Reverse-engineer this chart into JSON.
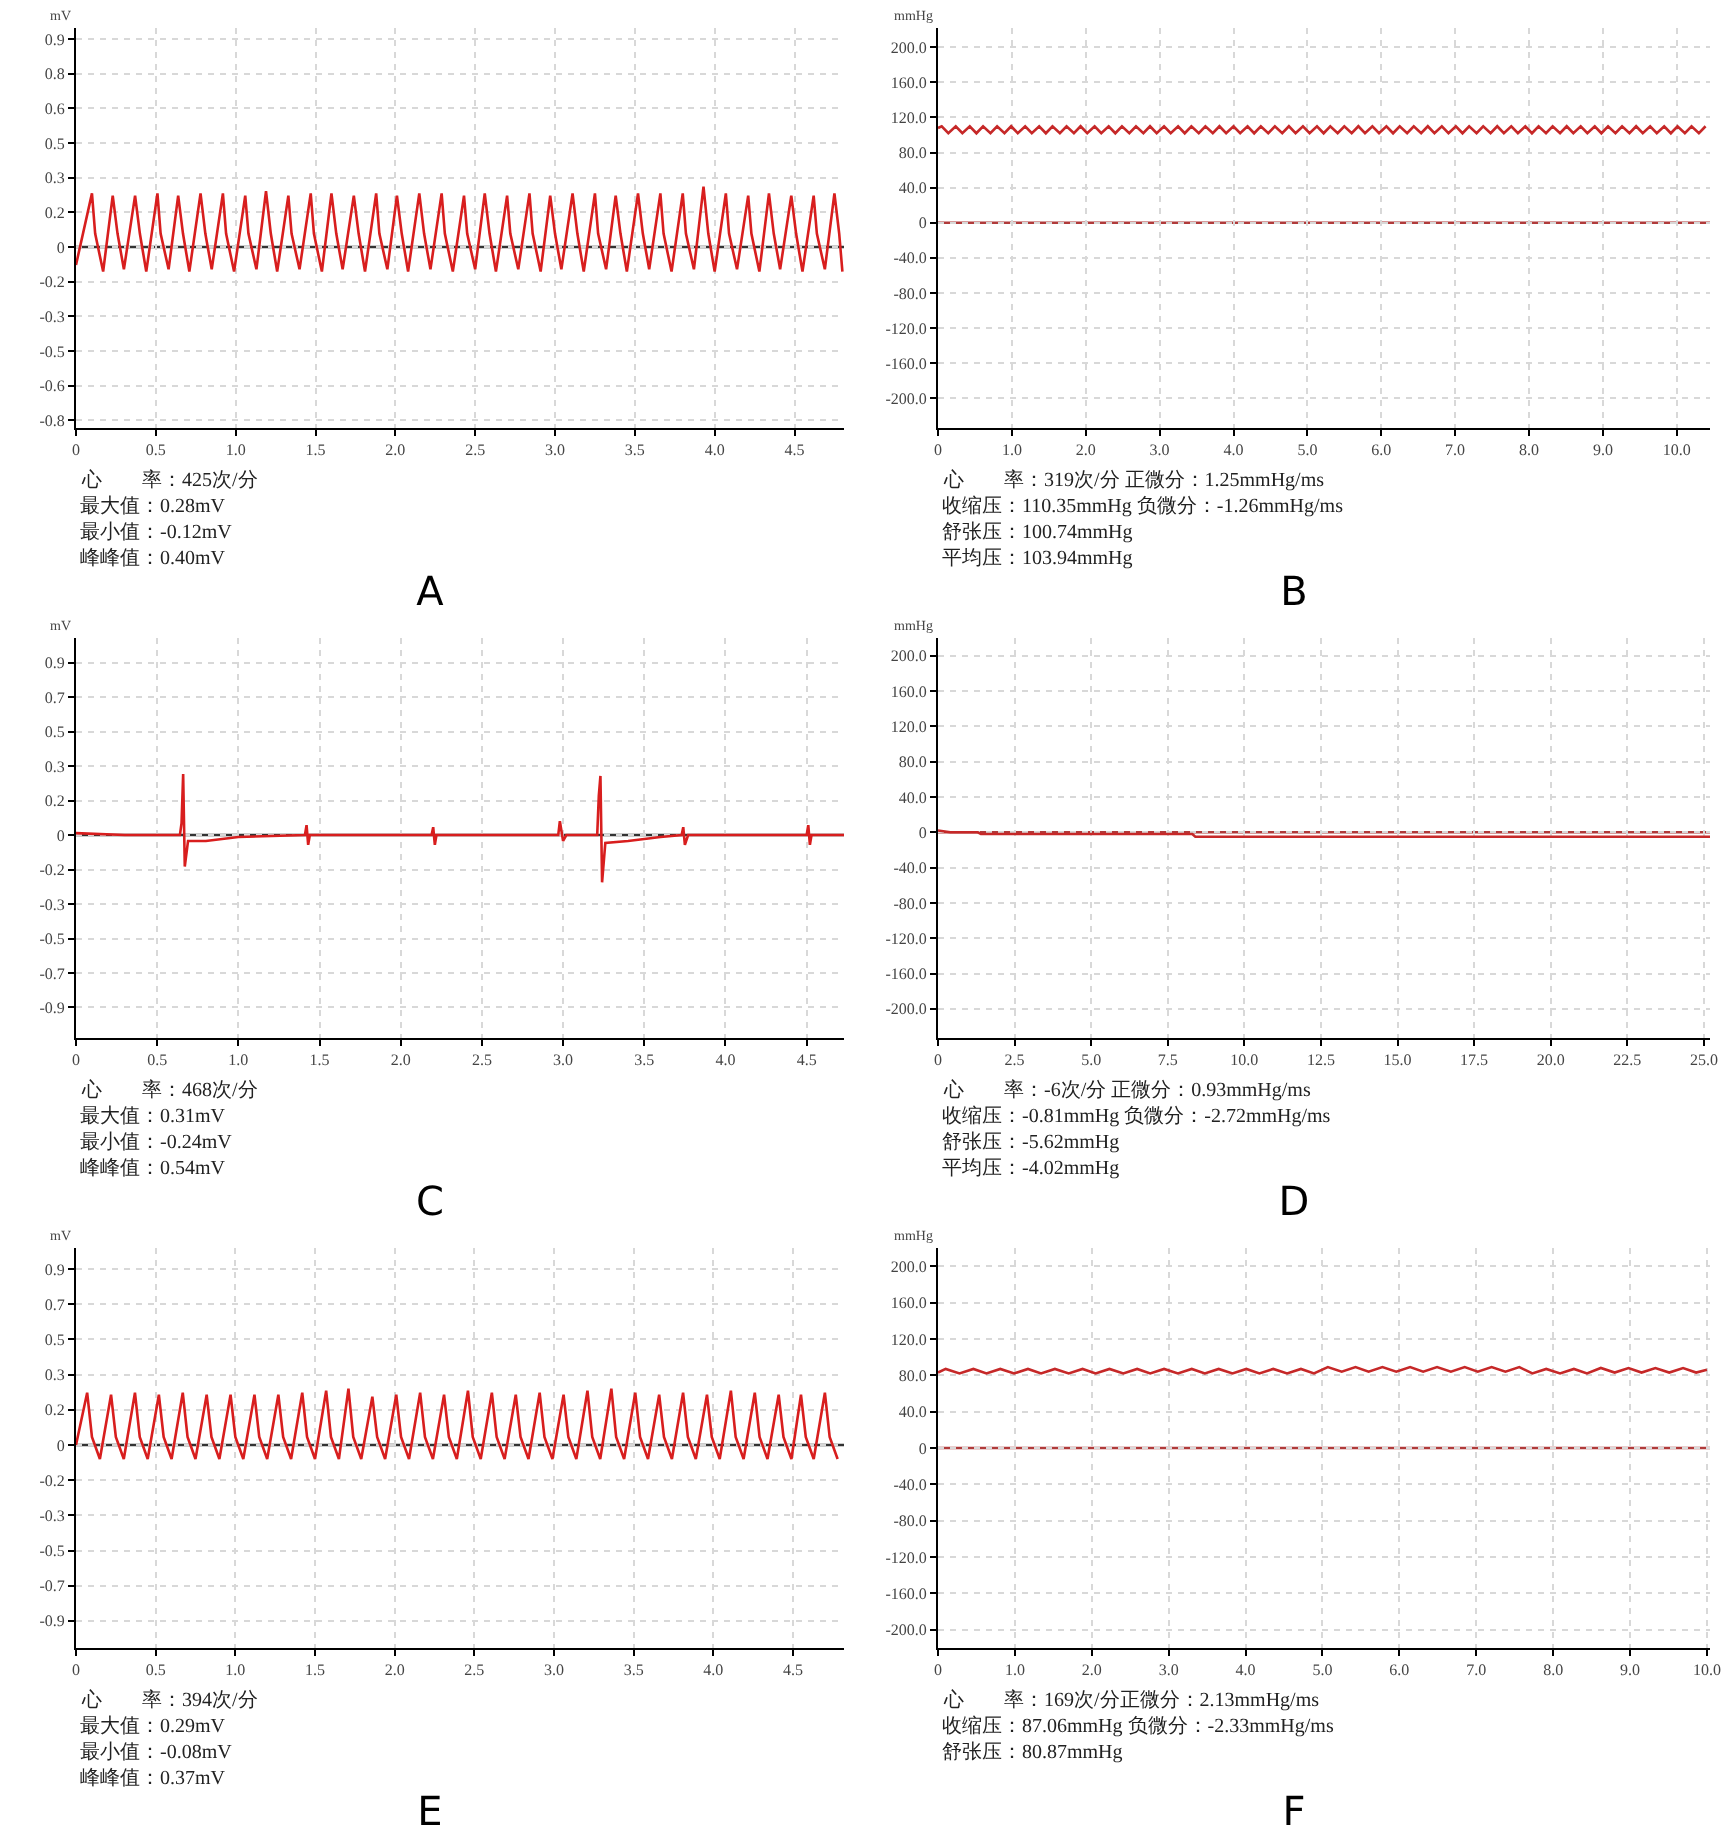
{
  "chart_data": [
    {
      "type": "line",
      "title": "A",
      "ylabel": "mV",
      "color": "#d81e1e",
      "grid": true,
      "annotations": [
        "心　　率：425次/分",
        "最大值：0.28mV",
        "最小值：-0.12mV",
        "峰峰值：0.40mV"
      ],
      "ref_lines": [
        {
          "axis": "y",
          "value": 0,
          "color": "#333333"
        }
      ],
      "xlim": [
        0,
        4.81
      ],
      "ylim": [
        -0.81,
        0.98
      ],
      "xticks": [
        0,
        0.5,
        {
          "value": 1,
          "label": "1.0"
        },
        1.5,
        {
          "value": 2,
          "label": "2.0"
        },
        2.5,
        {
          "value": 3,
          "label": "3.0"
        },
        3.5,
        {
          "value": 4,
          "label": "4.0"
        },
        4.5
      ],
      "yticks": [
        {
          "value": 0.93,
          "label": "0.9"
        },
        {
          "value": 0.775,
          "label": "0.8"
        },
        {
          "value": 0.62,
          "label": "0.6"
        },
        {
          "value": 0.465,
          "label": "0.5"
        },
        {
          "value": 0.31,
          "label": "0.3"
        },
        {
          "value": 0.155,
          "label": "0.2"
        },
        {
          "value": 0,
          "label": "0"
        },
        {
          "value": -0.155,
          "label": "-0.2"
        },
        {
          "value": -0.31,
          "label": "-0.3"
        },
        {
          "value": -0.465,
          "label": "-0.5"
        },
        {
          "value": -0.62,
          "label": "-0.6"
        },
        {
          "value": -0.775,
          "label": "-0.8"
        }
      ],
      "x": [
        0,
        0.1,
        0.12,
        0.17,
        0.23,
        0.26,
        0.3,
        0.37,
        0.4,
        0.44,
        0.51,
        0.53,
        0.58,
        0.64,
        0.67,
        0.71,
        0.78,
        0.81,
        0.85,
        0.92,
        0.94,
        0.99,
        1.06,
        1.08,
        1.13,
        1.19,
        1.22,
        1.26,
        1.33,
        1.35,
        1.4,
        1.47,
        1.49,
        1.54,
        1.6,
        1.63,
        1.67,
        1.74,
        1.77,
        1.81,
        1.88,
        1.9,
        1.95,
        2.01,
        2.04,
        2.08,
        2.15,
        2.18,
        2.22,
        2.29,
        2.31,
        2.36,
        2.43,
        2.45,
        2.5,
        2.56,
        2.59,
        2.63,
        2.7,
        2.72,
        2.77,
        2.84,
        2.86,
        2.91,
        2.97,
        3.0,
        3.04,
        3.11,
        3.14,
        3.18,
        3.25,
        3.27,
        3.32,
        3.38,
        3.41,
        3.45,
        3.52,
        3.55,
        3.59,
        3.66,
        3.68,
        3.73,
        3.8,
        3.82,
        3.87,
        3.93,
        3.96,
        4.0,
        4.07,
        4.09,
        4.14,
        4.21,
        4.23,
        4.28,
        4.34,
        4.37,
        4.41,
        4.48,
        4.51,
        4.55,
        4.62,
        4.64,
        4.69,
        4.75,
        4.78,
        4.8
      ],
      "values": [
        -0.08,
        0.24,
        0.06,
        -0.11,
        0.23,
        0.06,
        -0.1,
        0.23,
        0.06,
        -0.11,
        0.24,
        0.06,
        -0.1,
        0.23,
        0.06,
        -0.11,
        0.24,
        0.06,
        -0.1,
        0.24,
        0.06,
        -0.11,
        0.23,
        0.06,
        -0.1,
        0.25,
        0.06,
        -0.11,
        0.23,
        0.06,
        -0.1,
        0.24,
        0.06,
        -0.11,
        0.24,
        0.06,
        -0.1,
        0.23,
        0.06,
        -0.11,
        0.24,
        0.06,
        -0.1,
        0.23,
        0.06,
        -0.11,
        0.24,
        0.06,
        -0.1,
        0.24,
        0.06,
        -0.11,
        0.23,
        0.06,
        -0.1,
        0.24,
        0.06,
        -0.11,
        0.23,
        0.06,
        -0.1,
        0.24,
        0.06,
        -0.11,
        0.23,
        0.06,
        -0.1,
        0.24,
        0.06,
        -0.11,
        0.24,
        0.06,
        -0.1,
        0.23,
        0.06,
        -0.11,
        0.24,
        0.06,
        -0.1,
        0.24,
        0.06,
        -0.11,
        0.24,
        0.06,
        -0.1,
        0.27,
        0.06,
        -0.11,
        0.24,
        0.06,
        -0.1,
        0.23,
        0.06,
        -0.11,
        0.24,
        0.06,
        -0.1,
        0.23,
        0.06,
        -0.11,
        0.23,
        0.06,
        -0.1,
        0.24,
        0.06,
        -0.11
      ]
    },
    {
      "type": "line",
      "title": "B",
      "ylabel": "mmHg",
      "color": "#c62828",
      "grid": true,
      "annotations": [
        "心　　率：319次/分 正微分：1.25mmHg/ms",
        "收缩压：110.35mmHg 负微分：-1.26mmHg/ms",
        "舒张压：100.74mmHg",
        "平均压：103.94mmHg"
      ],
      "ref_lines": [
        {
          "axis": "y",
          "value": 0,
          "color": "#b03a3a"
        }
      ],
      "xlim": [
        0,
        10.45
      ],
      "ylim": [
        -234,
        222
      ],
      "xticks": [
        0,
        {
          "value": 1,
          "label": "1.0"
        },
        {
          "value": 2,
          "label": "2.0"
        },
        {
          "value": 3,
          "label": "3.0"
        },
        {
          "value": 4,
          "label": "4.0"
        },
        {
          "value": 5,
          "label": "5.0"
        },
        {
          "value": 6,
          "label": "6.0"
        },
        {
          "value": 7,
          "label": "7.0"
        },
        {
          "value": 8,
          "label": "8.0"
        },
        {
          "value": 9,
          "label": "9.0"
        },
        {
          "value": 10,
          "label": "10.0"
        }
      ],
      "yticks": [
        {
          "value": 200,
          "label": "200.0"
        },
        {
          "value": 160,
          "label": "160.0"
        },
        {
          "value": 120,
          "label": "120.0"
        },
        {
          "value": 80,
          "label": "80.0"
        },
        {
          "value": 40,
          "label": "40.0"
        },
        {
          "value": 0,
          "label": "0"
        },
        {
          "value": -40,
          "label": "-40.0"
        },
        {
          "value": -80,
          "label": "-80.0"
        },
        {
          "value": -120,
          "label": "-120.0"
        },
        {
          "value": -160,
          "label": "-160.0"
        },
        {
          "value": -200,
          "label": "-200.0"
        }
      ],
      "x": [
        0,
        0.05,
        0.14,
        0.24,
        0.33,
        0.43,
        0.52,
        0.61,
        0.71,
        0.8,
        0.9,
        0.99,
        1.08,
        1.18,
        1.27,
        1.37,
        1.46,
        1.55,
        1.65,
        1.74,
        1.84,
        1.93,
        2.02,
        2.12,
        2.21,
        2.31,
        2.4,
        2.49,
        2.59,
        2.68,
        2.78,
        2.87,
        2.96,
        3.06,
        3.15,
        3.25,
        3.34,
        3.43,
        3.53,
        3.62,
        3.72,
        3.81,
        3.9,
        4.0,
        4.09,
        4.19,
        4.28,
        4.37,
        4.47,
        4.56,
        4.66,
        4.75,
        4.84,
        4.94,
        5.03,
        5.13,
        5.22,
        5.31,
        5.41,
        5.5,
        5.6,
        5.69,
        5.78,
        5.88,
        5.97,
        6.07,
        6.16,
        6.25,
        6.35,
        6.44,
        6.54,
        6.63,
        6.72,
        6.82,
        6.91,
        7.01,
        7.1,
        7.19,
        7.29,
        7.38,
        7.48,
        7.57,
        7.66,
        7.76,
        7.85,
        7.95,
        8.04,
        8.13,
        8.23,
        8.32,
        8.42,
        8.51,
        8.6,
        8.7,
        8.79,
        8.89,
        8.98,
        9.07,
        9.17,
        9.26,
        9.36,
        9.45,
        9.54,
        9.64,
        9.73,
        9.83,
        9.92,
        10.01,
        10.11,
        10.2,
        10.3,
        10.39
      ],
      "values": [
        108,
        110,
        102,
        110,
        102,
        110,
        102,
        110,
        102,
        110,
        102,
        110,
        102,
        110,
        102,
        110,
        102,
        110,
        102,
        110,
        102,
        110,
        102,
        110,
        102,
        110,
        102,
        110,
        102,
        110,
        102,
        110,
        102,
        110,
        102,
        110,
        102,
        110,
        102,
        110,
        102,
        110,
        102,
        110,
        102,
        110,
        102,
        110,
        102,
        110,
        102,
        110,
        102,
        110,
        102,
        110,
        102,
        110,
        102,
        110,
        102,
        110,
        102,
        110,
        102,
        110,
        102,
        110,
        102,
        110,
        102,
        110,
        102,
        110,
        102,
        110,
        102,
        110,
        102,
        110,
        102,
        110,
        102,
        110,
        102,
        110,
        102,
        110,
        102,
        110,
        102,
        110,
        102,
        110,
        102,
        110,
        102,
        110,
        102,
        110,
        102,
        110,
        102,
        110,
        102,
        110,
        102,
        110,
        102,
        110,
        102,
        110
      ]
    },
    {
      "type": "line",
      "title": "C",
      "ylabel": "mV",
      "color": "#d81e1e",
      "grid": true,
      "annotations": [
        "心　　率：468次/分",
        "最大值：0.31mV",
        "最小值：-0.24mV",
        "峰峰值：0.54mV"
      ],
      "ref_lines": [
        {
          "axis": "y",
          "value": 0,
          "color": "#333333"
        }
      ],
      "xlim": [
        0,
        4.73
      ],
      "ylim": [
        -1.03,
        1.0
      ],
      "xticks": [
        0,
        0.5,
        {
          "value": 1,
          "label": "1.0"
        },
        1.5,
        {
          "value": 2,
          "label": "2.0"
        },
        2.5,
        {
          "value": 3,
          "label": "3.0"
        },
        3.5,
        {
          "value": 4,
          "label": "4.0"
        },
        4.5
      ],
      "yticks": [
        {
          "value": 0.875,
          "label": "0.9"
        },
        {
          "value": 0.7,
          "label": "0.7"
        },
        {
          "value": 0.525,
          "label": "0.5"
        },
        {
          "value": 0.35,
          "label": "0.3"
        },
        {
          "value": 0.175,
          "label": "0.2"
        },
        {
          "value": 0,
          "label": "0"
        },
        {
          "value": -0.175,
          "label": "-0.2"
        },
        {
          "value": -0.35,
          "label": "-0.3"
        },
        {
          "value": -0.525,
          "label": "-0.5"
        },
        {
          "value": -0.7,
          "label": "-0.7"
        },
        {
          "value": -0.875,
          "label": "-0.9"
        }
      ],
      "x": [
        0,
        0.3,
        0.64,
        0.65,
        0.66,
        0.67,
        0.69,
        0.8,
        1.0,
        1.41,
        1.42,
        1.43,
        1.44,
        1.8,
        2.19,
        2.2,
        2.21,
        2.22,
        2.97,
        2.98,
        3.0,
        3.02,
        3.21,
        3.22,
        3.23,
        3.24,
        3.26,
        3.4,
        3.6,
        3.73,
        3.74,
        3.75,
        3.77,
        4.1,
        4.5,
        4.51,
        4.52,
        4.53,
        4.73
      ],
      "values": [
        0.01,
        0,
        0,
        0.06,
        0.31,
        -0.16,
        -0.03,
        -0.03,
        -0.01,
        0,
        0.05,
        -0.05,
        0,
        0,
        0,
        0.04,
        -0.05,
        0,
        0,
        0.07,
        -0.03,
        0,
        0,
        0.2,
        0.3,
        -0.24,
        -0.04,
        -0.03,
        -0.01,
        0,
        0.04,
        -0.05,
        0,
        0,
        0,
        0.05,
        -0.05,
        0,
        0
      ]
    },
    {
      "type": "line",
      "title": "D",
      "ylabel": "mmHg",
      "color": "#c62828",
      "grid": true,
      "annotations": [
        "心　　率：-6次/分 正微分：0.93mmHg/ms",
        "收缩压：-0.81mmHg 负微分：-2.72mmHg/ms",
        "舒张压：-5.62mmHg",
        "平均压：-4.02mmHg"
      ],
      "ref_lines": [
        {
          "axis": "y",
          "value": 0,
          "color": "#b03a3a"
        }
      ],
      "xlim": [
        0,
        25.2
      ],
      "ylim": [
        -233,
        220
      ],
      "xticks": [
        0,
        2.5,
        {
          "value": 5,
          "label": "5.0"
        },
        7.5,
        {
          "value": 10,
          "label": "10.0"
        },
        12.5,
        {
          "value": 15,
          "label": "15.0"
        },
        17.5,
        {
          "value": 20,
          "label": "20.0"
        },
        22.5,
        {
          "value": 25,
          "label": "25.0"
        }
      ],
      "yticks": [
        {
          "value": 200,
          "label": "200.0"
        },
        {
          "value": 160,
          "label": "160.0"
        },
        {
          "value": 120,
          "label": "120.0"
        },
        {
          "value": 80,
          "label": "80.0"
        },
        {
          "value": 40,
          "label": "40.0"
        },
        {
          "value": 0,
          "label": "0"
        },
        {
          "value": -40,
          "label": "-40.0"
        },
        {
          "value": -80,
          "label": "-80.0"
        },
        {
          "value": -120,
          "label": "-120.0"
        },
        {
          "value": -160,
          "label": "-160.0"
        },
        {
          "value": -200,
          "label": "-200.0"
        }
      ],
      "x": [
        0,
        0.4,
        1.3,
        1.4,
        8.3,
        8.4,
        25.2
      ],
      "values": [
        2,
        0,
        0,
        -2,
        -2,
        -5,
        -5
      ]
    },
    {
      "type": "line",
      "title": "E",
      "ylabel": "mV",
      "color": "#d81e1e",
      "grid": true,
      "annotations": [
        "心　　率：394次/分",
        "最大值：0.29mV",
        "最小值：-0.08mV",
        "峰峰值：0.37mV"
      ],
      "ref_lines": [
        {
          "axis": "y",
          "value": 0,
          "color": "#333333"
        }
      ],
      "xlim": [
        0,
        4.82
      ],
      "ylim": [
        -1.01,
        0.98
      ],
      "xticks": [
        0,
        0.5,
        {
          "value": 1,
          "label": "1.0"
        },
        1.5,
        {
          "value": 2,
          "label": "2.0"
        },
        2.5,
        {
          "value": 3,
          "label": "3.0"
        },
        3.5,
        {
          "value": 4,
          "label": "4.0"
        },
        4.5
      ],
      "yticks": [
        {
          "value": 0.875,
          "label": "0.9"
        },
        {
          "value": 0.7,
          "label": "0.7"
        },
        {
          "value": 0.525,
          "label": "0.5"
        },
        {
          "value": 0.35,
          "label": "0.3"
        },
        {
          "value": 0.175,
          "label": "0.2"
        },
        {
          "value": 0,
          "label": "0"
        },
        {
          "value": -0.175,
          "label": "-0.2"
        },
        {
          "value": -0.35,
          "label": "-0.3"
        },
        {
          "value": -0.525,
          "label": "-0.5"
        },
        {
          "value": -0.7,
          "label": "-0.7"
        },
        {
          "value": -0.875,
          "label": "-0.9"
        }
      ],
      "x": [
        0,
        0.07,
        0.1,
        0.15,
        0.22,
        0.25,
        0.3,
        0.37,
        0.4,
        0.45,
        0.52,
        0.55,
        0.6,
        0.67,
        0.7,
        0.75,
        0.82,
        0.85,
        0.9,
        0.97,
        1.0,
        1.05,
        1.12,
        1.15,
        1.2,
        1.27,
        1.3,
        1.35,
        1.42,
        1.45,
        1.5,
        1.57,
        1.6,
        1.65,
        1.71,
        1.74,
        1.79,
        1.86,
        1.89,
        1.94,
        2.01,
        2.04,
        2.09,
        2.16,
        2.19,
        2.24,
        2.31,
        2.34,
        2.39,
        2.46,
        2.49,
        2.54,
        2.61,
        2.64,
        2.69,
        2.76,
        2.79,
        2.84,
        2.91,
        2.94,
        2.99,
        3.06,
        3.09,
        3.14,
        3.21,
        3.24,
        3.29,
        3.36,
        3.39,
        3.44,
        3.51,
        3.54,
        3.59,
        3.66,
        3.69,
        3.74,
        3.81,
        3.84,
        3.89,
        3.96,
        3.99,
        4.04,
        4.11,
        4.14,
        4.19,
        4.26,
        4.29,
        4.34,
        4.41,
        4.44,
        4.49,
        4.55,
        4.58,
        4.63,
        4.7,
        4.73,
        4.78
      ],
      "values": [
        0,
        0.26,
        0.04,
        -0.07,
        0.25,
        0.04,
        -0.07,
        0.26,
        0.04,
        -0.07,
        0.25,
        0.04,
        -0.07,
        0.26,
        0.04,
        -0.07,
        0.25,
        0.04,
        -0.07,
        0.25,
        0.04,
        -0.07,
        0.25,
        0.04,
        -0.07,
        0.25,
        0.04,
        -0.07,
        0.26,
        0.04,
        -0.07,
        0.27,
        0.04,
        -0.07,
        0.28,
        0.04,
        -0.07,
        0.24,
        0.04,
        -0.07,
        0.25,
        0.04,
        -0.07,
        0.26,
        0.04,
        -0.07,
        0.25,
        0.04,
        -0.07,
        0.27,
        0.04,
        -0.07,
        0.26,
        0.04,
        -0.07,
        0.25,
        0.04,
        -0.07,
        0.26,
        0.04,
        -0.07,
        0.25,
        0.04,
        -0.07,
        0.27,
        0.04,
        -0.07,
        0.28,
        0.04,
        -0.07,
        0.26,
        0.04,
        -0.07,
        0.25,
        0.04,
        -0.07,
        0.26,
        0.04,
        -0.07,
        0.25,
        0.04,
        -0.07,
        0.27,
        0.04,
        -0.07,
        0.26,
        0.04,
        -0.07,
        0.25,
        0.04,
        -0.07,
        0.25,
        0.04,
        -0.07,
        0.26,
        0.04,
        -0.07
      ]
    },
    {
      "type": "line",
      "title": "F",
      "ylabel": "mmHg",
      "color": "#c62828",
      "grid": true,
      "annotations": [
        "心　　率：169次/分正微分：2.13mmHg/ms",
        "收缩压：87.06mmHg 负微分：-2.33mmHg/ms",
        "舒张压：80.87mmHg"
      ],
      "ref_lines": [
        {
          "axis": "y",
          "value": 0,
          "color": "#b03a3a"
        }
      ],
      "xlim": [
        0,
        10.04
      ],
      "ylim": [
        -220,
        220
      ],
      "xticks": [
        0,
        {
          "value": 1,
          "label": "1.0"
        },
        {
          "value": 2,
          "label": "2.0"
        },
        {
          "value": 3,
          "label": "3.0"
        },
        {
          "value": 4,
          "label": "4.0"
        },
        {
          "value": 5,
          "label": "5.0"
        },
        {
          "value": 6,
          "label": "6.0"
        },
        {
          "value": 7,
          "label": "7.0"
        },
        {
          "value": 8,
          "label": "8.0"
        },
        {
          "value": 9,
          "label": "9.0"
        },
        {
          "value": 10,
          "label": "10.0"
        }
      ],
      "yticks": [
        {
          "value": 200,
          "label": "200.0"
        },
        {
          "value": 160,
          "label": "160.0"
        },
        {
          "value": 120,
          "label": "120.0"
        },
        {
          "value": 80,
          "label": "80.0"
        },
        {
          "value": 40,
          "label": "40.0"
        },
        {
          "value": 0,
          "label": "0"
        },
        {
          "value": -40,
          "label": "-40.0"
        },
        {
          "value": -80,
          "label": "-80.0"
        },
        {
          "value": -120,
          "label": "-120.0"
        },
        {
          "value": -160,
          "label": "-160.0"
        },
        {
          "value": -200,
          "label": "-200.0"
        }
      ],
      "x": [
        0,
        0.1,
        0.28,
        0.46,
        0.63,
        0.81,
        0.99,
        1.17,
        1.34,
        1.52,
        1.7,
        1.88,
        2.05,
        2.23,
        2.41,
        2.59,
        2.76,
        2.94,
        3.12,
        3.3,
        3.47,
        3.65,
        3.83,
        4.01,
        4.18,
        4.36,
        4.54,
        4.72,
        4.89,
        5.07,
        5.25,
        5.43,
        5.6,
        5.78,
        5.96,
        6.14,
        6.31,
        6.49,
        6.67,
        6.85,
        7.02,
        7.2,
        7.38,
        7.56,
        7.73,
        7.91,
        8.09,
        8.27,
        8.44,
        8.62,
        8.8,
        8.98,
        9.15,
        9.33,
        9.51,
        9.69,
        9.86,
        10.0
      ],
      "values": [
        83,
        87,
        82,
        87,
        82,
        87,
        82,
        87,
        82,
        87,
        82,
        87,
        82,
        87,
        82,
        87,
        82,
        87,
        82,
        87,
        82,
        87,
        82,
        87,
        82,
        87,
        82,
        87,
        82,
        89,
        84,
        89,
        84,
        89,
        84,
        89,
        84,
        89,
        84,
        89,
        84,
        89,
        84,
        89,
        82,
        87,
        82,
        87,
        82,
        88,
        83,
        88,
        83,
        88,
        83,
        88,
        83,
        86
      ]
    }
  ]
}
